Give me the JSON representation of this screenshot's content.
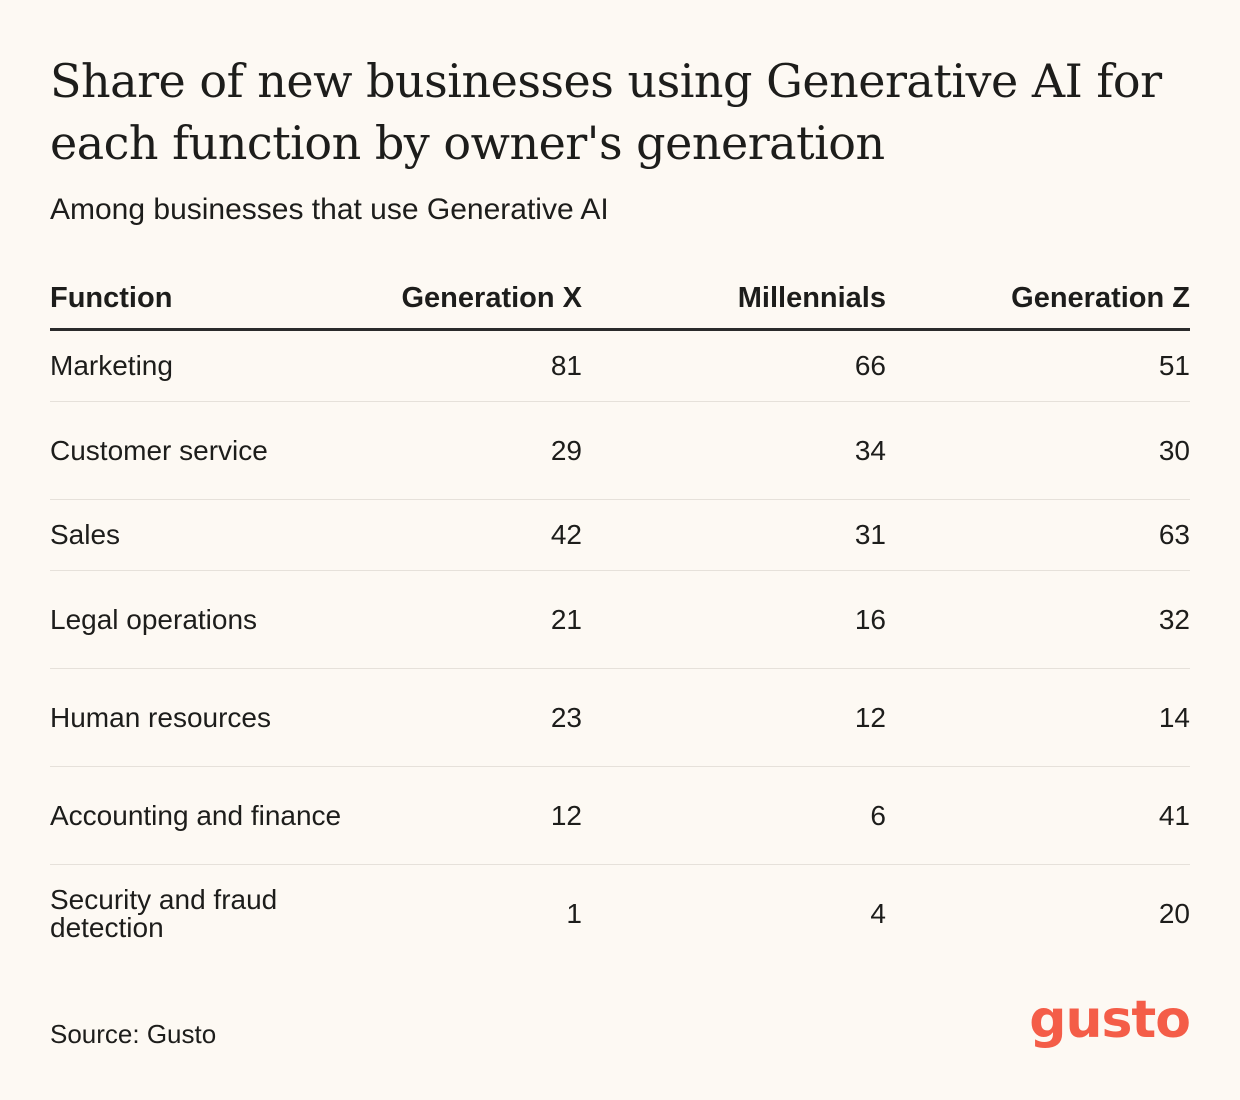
{
  "title": "Share of new businesses using Generative AI for each function by owner's generation",
  "subtitle": "Among businesses that use Generative AI",
  "source": "Source: Gusto",
  "logo": {
    "text": "gusto",
    "color": "#f45d48"
  },
  "chart_data": {
    "type": "table",
    "columns": [
      "Function",
      "Generation X",
      "Millennials",
      "Generation Z"
    ],
    "rows": [
      {
        "label": "Marketing",
        "values": [
          81,
          66,
          51
        ]
      },
      {
        "label": "Customer service",
        "values": [
          29,
          34,
          30
        ]
      },
      {
        "label": "Sales",
        "values": [
          42,
          31,
          63
        ]
      },
      {
        "label": "Legal operations",
        "values": [
          21,
          16,
          32
        ]
      },
      {
        "label": "Human resources",
        "values": [
          23,
          12,
          14
        ]
      },
      {
        "label": "Accounting and finance",
        "values": [
          12,
          6,
          41
        ]
      },
      {
        "label": "Security and fraud detection",
        "values": [
          1,
          4,
          20
        ]
      }
    ]
  }
}
